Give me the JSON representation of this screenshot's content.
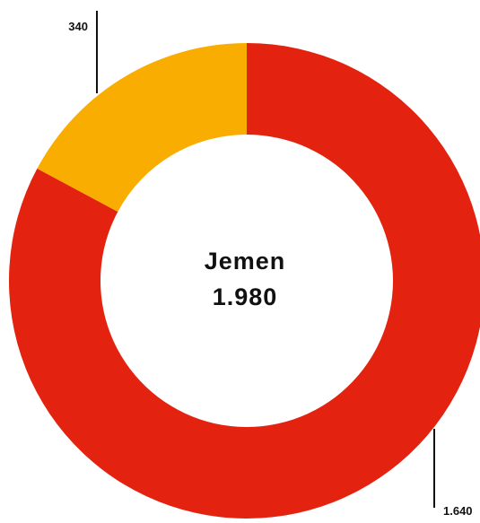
{
  "chart_data": {
    "type": "donut",
    "center_title": "Jemen",
    "center_value": "1.980",
    "categories": [
      null,
      null
    ],
    "values": [
      1640,
      340
    ],
    "value_labels": [
      "1.640",
      "340"
    ],
    "colors": [
      "#e3220f",
      "#f8ad00"
    ]
  }
}
